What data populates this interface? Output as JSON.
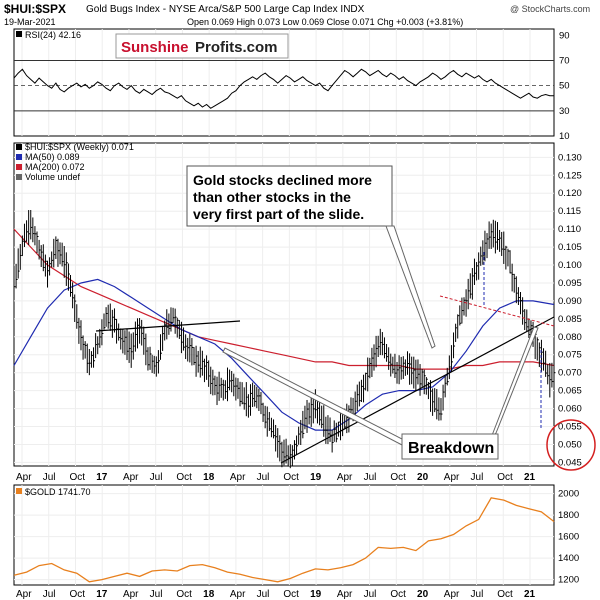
{
  "header": {
    "symbol": "$HUI:$SPX",
    "description": "Gold Bugs Index - NYSE Arca/S&P 500 Large Cap Index  INDX",
    "date": "19-Mar-2021",
    "ohlc": "Open 0.069  High 0.073  Low 0.069  Close 0.071  Chg +0.003 (+3.81%)",
    "watermark": "@ StockCharts.com"
  },
  "logo": {
    "part1": "Sunshine",
    "part2": "Profits.com"
  },
  "chart_data": [
    {
      "type": "line",
      "panel": "rsi",
      "title": "RSI(24) 42.16",
      "ylim": [
        10,
        95
      ],
      "y_ticks": [
        "90",
        "70",
        "50",
        "30",
        "10"
      ],
      "reference_lines": [
        70,
        50,
        30
      ],
      "series": [
        {
          "name": "RSI(24)",
          "color": "#000000",
          "x": [
            0,
            2,
            4,
            6,
            8,
            10,
            12,
            14,
            16,
            18,
            20,
            22,
            24,
            26,
            28,
            30,
            32,
            34,
            36,
            38,
            40,
            42,
            44,
            46,
            48,
            50,
            52,
            54,
            56,
            58,
            60,
            62,
            64,
            66,
            68,
            70,
            72,
            74,
            76,
            78,
            80,
            82,
            84,
            86,
            88,
            90,
            92,
            94,
            96,
            98,
            100,
            102,
            104,
            106,
            108,
            110,
            112,
            114,
            116,
            118,
            120,
            122,
            124,
            126,
            128,
            130,
            132,
            134,
            136,
            138,
            140,
            142,
            144,
            146,
            148,
            150,
            152,
            154,
            156,
            158,
            160,
            162,
            164,
            166,
            168,
            170,
            172,
            174,
            176,
            178,
            180,
            182,
            184,
            186,
            188,
            190,
            192,
            194,
            196,
            198,
            200,
            202,
            204,
            206,
            208,
            210,
            212,
            214,
            216,
            218,
            220,
            222,
            224,
            226,
            228,
            230,
            232,
            234,
            236,
            238,
            240,
            242,
            244,
            246,
            248,
            250,
            252,
            254,
            256,
            258
          ],
          "values": [
            56,
            60,
            63,
            58,
            55,
            52,
            56,
            53,
            50,
            48,
            52,
            47,
            45,
            48,
            50,
            52,
            49,
            51,
            48,
            50,
            53,
            51,
            48,
            46,
            50,
            52,
            49,
            47,
            50,
            46,
            44,
            47,
            45,
            43,
            46,
            48,
            45,
            44,
            42,
            40,
            42,
            38,
            36,
            34,
            36,
            33,
            35,
            32,
            34,
            36,
            38,
            40,
            44,
            46,
            50,
            53,
            55,
            57,
            55,
            58,
            60,
            57,
            55,
            52,
            55,
            58,
            56,
            53,
            55,
            57,
            54,
            52,
            50,
            52,
            48,
            46,
            50,
            54,
            58,
            62,
            60,
            57,
            60,
            63,
            61,
            58,
            60,
            62,
            59,
            57,
            60,
            58,
            55,
            57,
            54,
            52,
            50,
            53,
            55,
            57,
            60,
            58,
            55,
            57,
            60,
            62,
            59,
            57,
            60,
            58,
            56,
            58,
            55,
            53,
            55,
            52,
            50,
            48,
            46,
            44,
            42,
            40,
            42,
            44,
            41,
            40,
            42,
            43,
            42,
            42
          ]
        }
      ]
    },
    {
      "type": "line",
      "panel": "price",
      "title": "$HUI:$SPX (Weekly) 0.071",
      "ylim": [
        0.044,
        0.134
      ],
      "y_ticks": [
        "0.130",
        "0.125",
        "0.120",
        "0.115",
        "0.110",
        "0.105",
        "0.100",
        "0.095",
        "0.090",
        "0.085",
        "0.080",
        "0.075",
        "0.070",
        "0.065",
        "0.060",
        "0.055",
        "0.050",
        "0.045"
      ],
      "x_tick_labels": [
        "Apr",
        "Jul",
        "Oct",
        "17",
        "Apr",
        "Jul",
        "Oct",
        "18",
        "Apr",
        "Jul",
        "Oct",
        "19",
        "Apr",
        "Jul",
        "Oct",
        "20",
        "Apr",
        "Jul",
        "Oct",
        "21"
      ],
      "legend": [
        {
          "label": "$HUI:$SPX (Weekly) 0.071",
          "color": "#000000"
        },
        {
          "label": "MA(50) 0.089",
          "color": "#1f2bb0"
        },
        {
          "label": "MA(200) 0.072",
          "color": "#cc1f2e"
        },
        {
          "label": "Volume undef",
          "color": "#666666"
        }
      ],
      "series": [
        {
          "name": "$HUI:$SPX",
          "color": "#000000",
          "x": [
            0,
            4,
            8,
            12,
            16,
            20,
            24,
            28,
            32,
            36,
            40,
            44,
            48,
            52,
            56,
            60,
            64,
            68,
            72,
            76,
            80,
            84,
            88,
            92,
            96,
            100,
            104,
            108,
            112,
            116,
            120,
            124,
            128,
            132,
            136,
            140,
            144,
            148,
            152,
            156,
            160,
            164,
            168,
            172,
            176,
            180,
            184,
            188,
            192,
            196,
            200,
            204,
            208,
            212,
            216,
            220,
            224,
            228,
            232,
            236,
            240,
            244,
            248,
            252,
            256,
            258
          ],
          "values": [
            0.094,
            0.106,
            0.112,
            0.104,
            0.098,
            0.105,
            0.101,
            0.092,
            0.08,
            0.072,
            0.078,
            0.086,
            0.084,
            0.079,
            0.076,
            0.083,
            0.074,
            0.071,
            0.082,
            0.086,
            0.08,
            0.076,
            0.073,
            0.071,
            0.066,
            0.065,
            0.068,
            0.064,
            0.062,
            0.063,
            0.058,
            0.054,
            0.048,
            0.046,
            0.052,
            0.058,
            0.061,
            0.056,
            0.052,
            0.055,
            0.058,
            0.062,
            0.068,
            0.075,
            0.078,
            0.073,
            0.07,
            0.072,
            0.069,
            0.068,
            0.062,
            0.06,
            0.072,
            0.084,
            0.09,
            0.097,
            0.104,
            0.109,
            0.107,
            0.102,
            0.093,
            0.085,
            0.08,
            0.075,
            0.068,
            0.071
          ]
        },
        {
          "name": "MA(50)",
          "color": "#1f2bb0",
          "x": [
            0,
            8,
            16,
            24,
            32,
            40,
            48,
            56,
            64,
            72,
            80,
            88,
            96,
            104,
            112,
            120,
            128,
            136,
            144,
            152,
            160,
            168,
            176,
            184,
            192,
            200,
            208,
            216,
            224,
            232,
            240,
            248,
            258
          ],
          "values": [
            0.072,
            0.08,
            0.088,
            0.093,
            0.095,
            0.096,
            0.094,
            0.091,
            0.088,
            0.085,
            0.082,
            0.08,
            0.078,
            0.074,
            0.069,
            0.064,
            0.059,
            0.056,
            0.054,
            0.054,
            0.057,
            0.061,
            0.064,
            0.065,
            0.065,
            0.066,
            0.07,
            0.076,
            0.083,
            0.088,
            0.09,
            0.09,
            0.089
          ]
        },
        {
          "name": "MA(200)",
          "color": "#cc1f2e",
          "x": [
            0,
            8,
            16,
            24,
            32,
            40,
            48,
            56,
            64,
            72,
            80,
            88,
            96,
            104,
            112,
            120,
            128,
            136,
            144,
            152,
            160,
            168,
            176,
            184,
            192,
            200,
            208,
            216,
            224,
            232,
            240,
            248,
            258
          ],
          "values": [
            0.11,
            0.105,
            0.1,
            0.097,
            0.094,
            0.092,
            0.09,
            0.088,
            0.086,
            0.084,
            0.082,
            0.08,
            0.079,
            0.078,
            0.077,
            0.076,
            0.075,
            0.074,
            0.073,
            0.073,
            0.072,
            0.072,
            0.072,
            0.072,
            0.071,
            0.071,
            0.071,
            0.072,
            0.072,
            0.073,
            0.073,
            0.073,
            0.072
          ]
        }
      ],
      "annotations": [
        {
          "text_lines": [
            "Gold stocks declined more",
            "than other stocks in the",
            "very first part of the slide."
          ]
        },
        {
          "text": "Breakdown"
        }
      ]
    },
    {
      "type": "line",
      "panel": "gold",
      "title": "$GOLD 1741.70",
      "ylim": [
        1150,
        2080
      ],
      "y_ticks": [
        "2000",
        "1800",
        "1600",
        "1400",
        "1200"
      ],
      "x_tick_labels": [
        "Apr",
        "Jul",
        "Oct",
        "17",
        "Apr",
        "Jul",
        "Oct",
        "18",
        "Apr",
        "Jul",
        "Oct",
        "19",
        "Apr",
        "Jul",
        "Oct",
        "20",
        "Apr",
        "Jul",
        "Oct",
        "21"
      ],
      "series": [
        {
          "name": "$GOLD",
          "color": "#e8801e",
          "x": [
            0,
            6,
            12,
            18,
            24,
            30,
            36,
            42,
            48,
            54,
            60,
            66,
            72,
            78,
            84,
            90,
            96,
            102,
            108,
            114,
            120,
            126,
            132,
            138,
            144,
            150,
            156,
            162,
            168,
            174,
            180,
            186,
            192,
            198,
            204,
            210,
            216,
            222,
            228,
            234,
            240,
            246,
            252,
            258
          ],
          "values": [
            1240,
            1270,
            1330,
            1350,
            1290,
            1260,
            1180,
            1200,
            1230,
            1260,
            1230,
            1280,
            1290,
            1280,
            1330,
            1340,
            1310,
            1270,
            1250,
            1220,
            1200,
            1180,
            1210,
            1260,
            1300,
            1290,
            1310,
            1340,
            1400,
            1500,
            1490,
            1500,
            1470,
            1560,
            1580,
            1620,
            1700,
            1760,
            1960,
            1940,
            1890,
            1860,
            1830,
            1740
          ]
        }
      ]
    }
  ]
}
